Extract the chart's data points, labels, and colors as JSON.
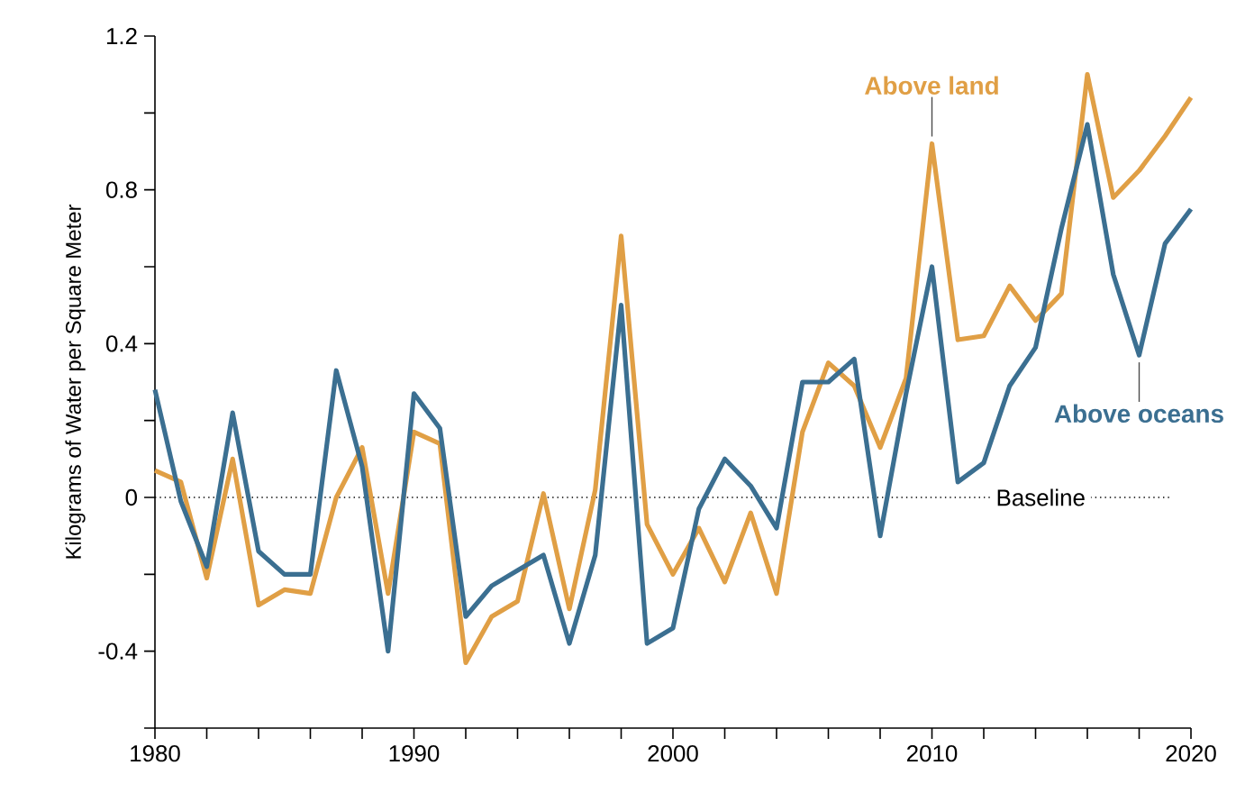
{
  "chart_data": {
    "type": "line",
    "ylabel": "Kilograms of Water per Square Meter",
    "x": [
      1980,
      1981,
      1982,
      1983,
      1984,
      1985,
      1986,
      1987,
      1988,
      1989,
      1990,
      1991,
      1992,
      1993,
      1994,
      1995,
      1996,
      1997,
      1998,
      1999,
      2000,
      2001,
      2002,
      2003,
      2004,
      2005,
      2006,
      2007,
      2008,
      2009,
      2010,
      2011,
      2012,
      2013,
      2014,
      2015,
      2016,
      2017,
      2018,
      2019,
      2020
    ],
    "series": [
      {
        "name": "Above land",
        "color": "#e09f45",
        "values": [
          0.07,
          0.04,
          -0.21,
          0.1,
          -0.28,
          -0.24,
          -0.25,
          0.0,
          0.13,
          -0.25,
          0.17,
          0.14,
          -0.43,
          -0.31,
          -0.27,
          0.01,
          -0.29,
          0.02,
          0.68,
          -0.07,
          -0.2,
          -0.08,
          -0.22,
          -0.04,
          -0.25,
          0.17,
          0.35,
          0.29,
          0.13,
          0.31,
          0.92,
          0.41,
          0.42,
          0.55,
          0.46,
          0.53,
          1.1,
          0.78,
          0.85,
          0.94,
          1.04
        ]
      },
      {
        "name": "Above oceans",
        "color": "#3b6f91",
        "values": [
          0.28,
          -0.01,
          -0.18,
          0.22,
          -0.14,
          -0.2,
          -0.2,
          0.33,
          0.08,
          -0.4,
          0.27,
          0.18,
          -0.31,
          -0.23,
          -0.19,
          -0.15,
          -0.38,
          -0.15,
          0.5,
          -0.38,
          -0.34,
          -0.03,
          0.1,
          0.03,
          -0.08,
          0.3,
          0.3,
          0.36,
          -0.1,
          0.27,
          0.6,
          0.04,
          0.09,
          0.29,
          0.39,
          0.7,
          0.97,
          0.58,
          0.37,
          0.66,
          0.75
        ]
      }
    ],
    "xlim": [
      1980,
      2020
    ],
    "xticks": [
      1980,
      {
        "value": 1982,
        "label": null
      },
      {
        "value": 1984,
        "label": null
      },
      {
        "value": 1986,
        "label": null
      },
      {
        "value": 1988,
        "label": null
      },
      1990,
      {
        "value": 1992,
        "label": null
      },
      {
        "value": 1994,
        "label": null
      },
      {
        "value": 1996,
        "label": null
      },
      {
        "value": 1998,
        "label": null
      },
      2000,
      {
        "value": 2002,
        "label": null
      },
      {
        "value": 2004,
        "label": null
      },
      {
        "value": 2006,
        "label": null
      },
      {
        "value": 2008,
        "label": null
      },
      2010,
      {
        "value": 2012,
        "label": null
      },
      {
        "value": 2014,
        "label": null
      },
      {
        "value": 2016,
        "label": null
      },
      {
        "value": 2018,
        "label": null
      },
      2020
    ],
    "ylim": [
      -0.6,
      1.2
    ],
    "yticks": [
      1.2,
      {
        "value": 1.0,
        "label": null
      },
      0.8,
      {
        "value": 0.6,
        "label": null
      },
      0.4,
      {
        "value": 0.2,
        "label": null
      },
      0,
      {
        "value": -0.2,
        "label": null
      },
      -0.4,
      {
        "value": -0.6,
        "label": null
      }
    ],
    "ref_lines": [
      {
        "axis": "y",
        "value": 0,
        "label": "Baseline",
        "line_style": "dotted"
      }
    ],
    "grid": false,
    "legend": false,
    "marker": "none",
    "line_style": "solid"
  }
}
